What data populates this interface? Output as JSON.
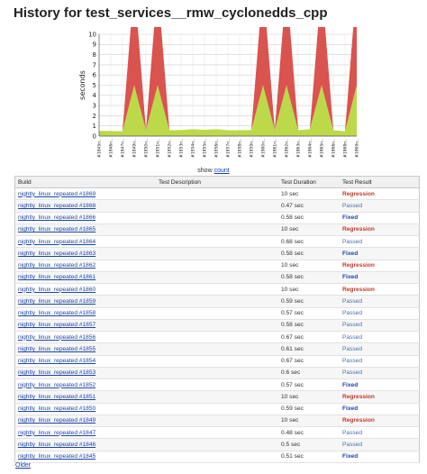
{
  "page": {
    "title": "History for test_services__rmw_cyclonedds_cpp"
  },
  "chart_data": {
    "type": "area",
    "ylabel": "seconds",
    "ylim": [
      0,
      10
    ],
    "yticks": [
      "0",
      "1",
      "2",
      "3",
      "4",
      "5",
      "6",
      "7",
      "8",
      "9",
      "10"
    ],
    "x": [
      "#1845",
      "#1846",
      "#1847",
      "#1849",
      "#1850",
      "#1851",
      "#1852",
      "#1853",
      "#1854",
      "#1855",
      "#1856",
      "#1857",
      "#1858",
      "#1859",
      "#1860",
      "#1861",
      "#1862",
      "#1863",
      "#1864",
      "#1865",
      "#1866",
      "#1868",
      "#1869"
    ],
    "x_tick_labels": [
      "#1845n..",
      "#1846n..",
      "#1847n..",
      "#1849n..",
      "#1850n..",
      "#1851n..",
      "#1852n..",
      "#1853n..",
      "#1854n..",
      "#1855n..",
      "#1856n..",
      "#1857n..",
      "#1858n..",
      "#1859n..",
      "#1860n..",
      "#1861n..",
      "#1862n..",
      "#1863n..",
      "#1864n..",
      "#1865n..",
      "#1866n..",
      "#1868n..",
      "#1869n.."
    ],
    "series": [
      {
        "color": "#bcd94a",
        "values": [
          0.51,
          0.5,
          0.48,
          5,
          0.59,
          5,
          0.57,
          0.6,
          0.67,
          0.61,
          0.67,
          0.58,
          0.57,
          0.59,
          5,
          0.58,
          5,
          0.58,
          0.68,
          5,
          0.58,
          0.47,
          5
        ]
      },
      {
        "color": "#d9534f",
        "values": [
          0,
          0,
          0,
          10,
          0,
          10,
          0,
          0,
          0,
          0,
          0,
          0,
          0,
          0,
          10,
          0,
          10,
          0,
          0,
          10,
          0,
          0,
          10
        ]
      }
    ],
    "grid": true
  },
  "show_count": {
    "prefix": "show",
    "link": "count"
  },
  "table": {
    "headers": [
      "Build",
      "Test Description",
      "Test Duration",
      "Test Result"
    ],
    "rows": [
      {
        "build": "nightly_linux_repeated #1869",
        "desc": "",
        "duration": "10 sec",
        "result": "Regression"
      },
      {
        "build": "nightly_linux_repeated #1868",
        "desc": "",
        "duration": "0.47 sec",
        "result": "Passed"
      },
      {
        "build": "nightly_linux_repeated #1866",
        "desc": "",
        "duration": "0.58 sec",
        "result": "Fixed"
      },
      {
        "build": "nightly_linux_repeated #1865",
        "desc": "",
        "duration": "10 sec",
        "result": "Regression"
      },
      {
        "build": "nightly_linux_repeated #1864",
        "desc": "",
        "duration": "0.68 sec",
        "result": "Passed"
      },
      {
        "build": "nightly_linux_repeated #1863",
        "desc": "",
        "duration": "0.58 sec",
        "result": "Fixed"
      },
      {
        "build": "nightly_linux_repeated #1862",
        "desc": "",
        "duration": "10 sec",
        "result": "Regression"
      },
      {
        "build": "nightly_linux_repeated #1861",
        "desc": "",
        "duration": "0.58 sec",
        "result": "Fixed"
      },
      {
        "build": "nightly_linux_repeated #1860",
        "desc": "",
        "duration": "10 sec",
        "result": "Regression"
      },
      {
        "build": "nightly_linux_repeated #1859",
        "desc": "",
        "duration": "0.59 sec",
        "result": "Passed"
      },
      {
        "build": "nightly_linux_repeated #1858",
        "desc": "",
        "duration": "0.57 sec",
        "result": "Passed"
      },
      {
        "build": "nightly_linux_repeated #1857",
        "desc": "",
        "duration": "0.58 sec",
        "result": "Passed"
      },
      {
        "build": "nightly_linux_repeated #1856",
        "desc": "",
        "duration": "0.67 sec",
        "result": "Passed"
      },
      {
        "build": "nightly_linux_repeated #1855",
        "desc": "",
        "duration": "0.61 sec",
        "result": "Passed"
      },
      {
        "build": "nightly_linux_repeated #1854",
        "desc": "",
        "duration": "0.67 sec",
        "result": "Passed"
      },
      {
        "build": "nightly_linux_repeated #1853",
        "desc": "",
        "duration": "0.6 sec",
        "result": "Passed"
      },
      {
        "build": "nightly_linux_repeated #1852",
        "desc": "",
        "duration": "0.57 sec",
        "result": "Fixed"
      },
      {
        "build": "nightly_linux_repeated #1851",
        "desc": "",
        "duration": "10 sec",
        "result": "Regression"
      },
      {
        "build": "nightly_linux_repeated #1850",
        "desc": "",
        "duration": "0.59 sec",
        "result": "Fixed"
      },
      {
        "build": "nightly_linux_repeated #1849",
        "desc": "",
        "duration": "10 sec",
        "result": "Regression"
      },
      {
        "build": "nightly_linux_repeated #1847",
        "desc": "",
        "duration": "0.48 sec",
        "result": "Passed"
      },
      {
        "build": "nightly_linux_repeated #1846",
        "desc": "",
        "duration": "0.5 sec",
        "result": "Passed"
      },
      {
        "build": "nightly_linux_repeated #1845",
        "desc": "",
        "duration": "0.51 sec",
        "result": "Fixed"
      }
    ]
  },
  "older_link": "Older"
}
